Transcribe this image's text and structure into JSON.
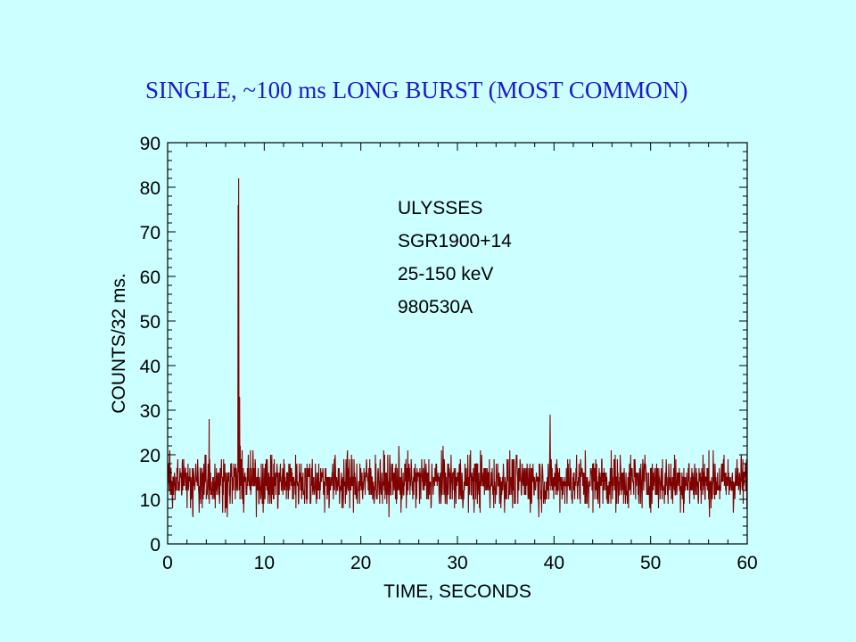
{
  "slide_title": "SINGLE, ~100 ms LONG BURST (MOST COMMON)",
  "chart_data": {
    "type": "line",
    "title": "",
    "xlabel": "TIME, SECONDS",
    "ylabel": "COUNTS/32 ms.",
    "xlim": [
      0,
      60
    ],
    "ylim": [
      0,
      90
    ],
    "x_ticks": [
      0,
      10,
      20,
      30,
      40,
      50,
      60
    ],
    "y_ticks": [
      0,
      10,
      20,
      30,
      40,
      50,
      60,
      70,
      80,
      90
    ],
    "x_minor_step": 2,
    "y_minor_step": 2,
    "grid": false,
    "line_color": "#800000",
    "annotation_lines": [
      "ULYSSES",
      "SGR1900+14",
      "25-150 keV",
      "980530A"
    ],
    "series": [
      {
        "sampling_interval_s": 0.032,
        "baseline_mean": 14,
        "noise_range": [
          4,
          26
        ],
        "notable_points": [
          {
            "x": 4.3,
            "y": 28
          },
          {
            "x": 7.3,
            "y": 76
          },
          {
            "x": 7.35,
            "y": 82
          },
          {
            "x": 7.45,
            "y": 33
          },
          {
            "x": 39.6,
            "y": 29
          }
        ]
      }
    ]
  }
}
